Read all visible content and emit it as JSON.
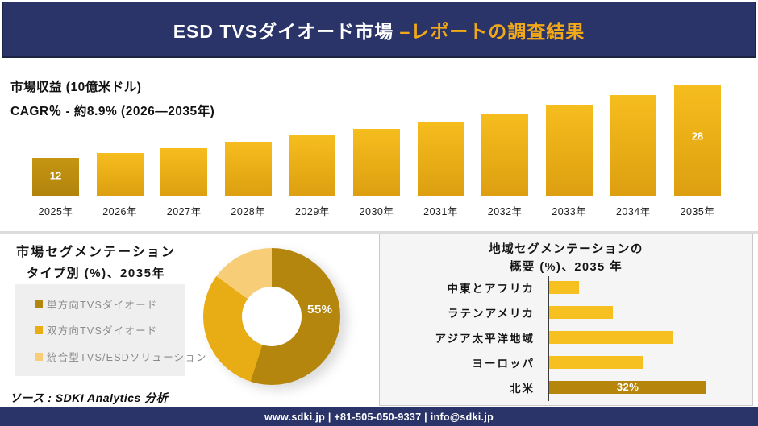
{
  "header": {
    "title_white": "ESD TVSダイオード市場 ",
    "title_gold": "–レポートの調査結果",
    "bg_color": "#2b3469",
    "accent_color": "#f2a918"
  },
  "chart_data": [
    {
      "id": "market_revenue_by_year",
      "type": "bar",
      "title": "市場収益 (10億米ドル)",
      "subtitle": "CAGR％ - 約8.9% (2026―2035年)",
      "categories": [
        "2025年",
        "2026年",
        "2027年",
        "2028年",
        "2029年",
        "2030年",
        "2031年",
        "2032年",
        "2033年",
        "2034年",
        "2035年"
      ],
      "values": [
        12,
        13.1,
        14.2,
        15.5,
        16.9,
        18.4,
        20,
        21.8,
        23.7,
        25.8,
        28
      ],
      "bar_labels": [
        "12",
        "",
        "",
        "",
        "",
        "",
        "",
        "",
        "",
        "",
        "28"
      ],
      "ylim": [
        0,
        30
      ],
      "grid": false,
      "colors": {
        "first_bar_top": "#c59512",
        "first_bar_bottom": "#b1830c",
        "bar_top": "#f6bd1e",
        "bar_bottom": "#dd9f10",
        "data_label": "#ffffff"
      }
    },
    {
      "id": "type_segmentation_donut",
      "type": "pie",
      "title_line1": "市場セグメンテーション",
      "title_line2": "タイプ別 (%)、2035年",
      "slices": [
        {
          "label": "単方向TVSダイオード",
          "value": 55,
          "color": "#b5860d",
          "data_label": "55%"
        },
        {
          "label": "双方向TVSダイオード",
          "value": 30,
          "color": "#e8ac14",
          "data_label": ""
        },
        {
          "label": "統合型TVS/ESDソリューション",
          "value": 15,
          "color": "#f8cd77",
          "data_label": ""
        }
      ],
      "donut_hole_ratio": 0.435,
      "legend_position": "left"
    },
    {
      "id": "region_segmentation_overview",
      "type": "bar",
      "orientation": "horizontal",
      "title_line1": "地域セグメンテーションの",
      "title_line2": "概要 (%)、2035 年",
      "categories": [
        "中東とアフリカ",
        "ラテンアメリカ",
        "アジア太平洋地域",
        "ヨーロッパ",
        "北米"
      ],
      "values": [
        6,
        13,
        25,
        19,
        32
      ],
      "bar_labels": [
        "",
        "",
        "",
        "",
        "32%"
      ],
      "colors": {
        "bar": "#f6c120",
        "last_bar": "#b5860b",
        "data_label": "#ffffff"
      }
    }
  ],
  "source": {
    "text": "ソース : SDKI Analytics 分析"
  },
  "footer": {
    "text": "www.sdki.jp | +81-505-050-9337 | info@sdki.jp"
  }
}
